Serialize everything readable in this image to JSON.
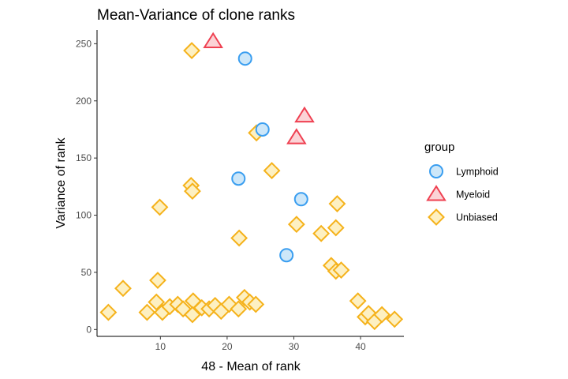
{
  "chart_data": {
    "type": "scatter",
    "title": "Mean-Variance of clone ranks",
    "xlabel": "48 - Mean of rank",
    "ylabel": "Variance of rank",
    "xlim": [
      0.5,
      46.5
    ],
    "ylim": [
      -6,
      262
    ],
    "xticks": [
      10,
      20,
      30,
      40
    ],
    "yticks": [
      0,
      50,
      100,
      150,
      200,
      250
    ],
    "grid": false,
    "legend": {
      "title": "group",
      "position": "right"
    },
    "series": [
      {
        "name": "Lymphoid",
        "marker": "circle",
        "fill": "#cde7f9",
        "stroke": "#3a9ef0",
        "points": [
          [
            22.7,
            237
          ],
          [
            25.3,
            175
          ],
          [
            21.7,
            132
          ],
          [
            31.1,
            114
          ],
          [
            28.9,
            65
          ]
        ]
      },
      {
        "name": "Myeloid",
        "marker": "triangle",
        "fill": "#fbd3d6",
        "stroke": "#ef4152",
        "points": [
          [
            17.9,
            252
          ],
          [
            31.6,
            187
          ],
          [
            30.4,
            168
          ]
        ]
      },
      {
        "name": "Unbiased",
        "marker": "diamond",
        "fill": "#fdf0c2",
        "stroke": "#f5b21b",
        "points": [
          [
            14.7,
            244
          ],
          [
            24.4,
            172
          ],
          [
            26.7,
            139
          ],
          [
            14.6,
            126
          ],
          [
            14.8,
            121
          ],
          [
            9.9,
            107
          ],
          [
            21.8,
            80
          ],
          [
            30.4,
            92
          ],
          [
            34.1,
            84
          ],
          [
            36.3,
            89
          ],
          [
            36.5,
            110
          ],
          [
            35.6,
            56
          ],
          [
            36.3,
            51
          ],
          [
            37.1,
            52
          ],
          [
            9.6,
            43
          ],
          [
            4.4,
            36
          ],
          [
            2.2,
            15
          ],
          [
            8.0,
            15
          ],
          [
            9.4,
            24
          ],
          [
            10.3,
            15
          ],
          [
            11.4,
            20
          ],
          [
            12.6,
            22
          ],
          [
            13.4,
            18
          ],
          [
            14.9,
            25
          ],
          [
            14.8,
            13
          ],
          [
            16.2,
            19
          ],
          [
            17.3,
            18
          ],
          [
            18.2,
            21
          ],
          [
            19.1,
            16
          ],
          [
            20.3,
            22
          ],
          [
            21.7,
            18
          ],
          [
            22.6,
            28
          ],
          [
            23.4,
            24
          ],
          [
            24.3,
            22
          ],
          [
            39.6,
            25
          ],
          [
            40.7,
            11
          ],
          [
            41.2,
            14
          ],
          [
            42.1,
            7
          ],
          [
            43.2,
            13
          ],
          [
            45.1,
            9
          ]
        ]
      }
    ]
  }
}
